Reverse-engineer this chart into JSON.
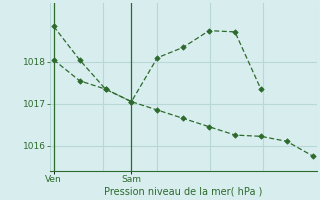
{
  "bg_color": "#d8eeee",
  "grid_color": "#b8d8d8",
  "line_color": "#2d6a2d",
  "line1_x": [
    0,
    1,
    2,
    3,
    4,
    5,
    6,
    7,
    8
  ],
  "line1_y": [
    1018.85,
    1018.05,
    1017.35,
    1017.05,
    1018.1,
    1018.35,
    1018.75,
    1018.72,
    1017.35
  ],
  "line2_x": [
    0,
    1,
    2,
    3,
    4,
    5,
    6,
    7,
    8,
    9,
    10
  ],
  "line2_y": [
    1018.05,
    1017.55,
    1017.35,
    1017.05,
    1016.85,
    1016.65,
    1016.45,
    1016.25,
    1016.22,
    1016.1,
    1015.75
  ],
  "ven_x": 0,
  "sam_x": 3,
  "xlim": [
    -0.15,
    10.15
  ],
  "ylim": [
    1015.4,
    1019.4
  ],
  "ylabel_ticks": [
    1016,
    1017,
    1018
  ],
  "xlabel": "Pression niveau de la mer( hPa )",
  "marker": "D",
  "markersize": 2.8,
  "linewidth": 0.9,
  "tick_fontsize": 6.5,
  "xlabel_fontsize": 7.0
}
